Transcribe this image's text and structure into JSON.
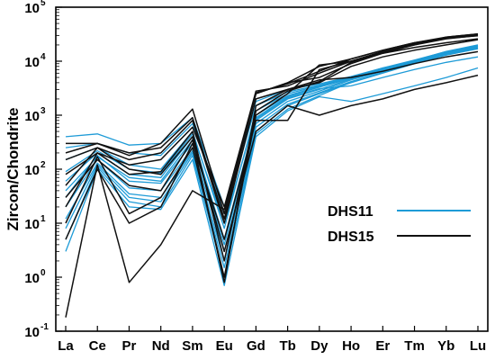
{
  "chart_data": {
    "type": "line",
    "ylabel": "Zircon/Chondrite",
    "y_scale": "log",
    "ylim": [
      0.1,
      100000
    ],
    "y_ticks": [
      {
        "base": "10",
        "exp": "-1",
        "value": 0.1
      },
      {
        "base": "10",
        "exp": "0",
        "value": 1
      },
      {
        "base": "10",
        "exp": "1",
        "value": 10
      },
      {
        "base": "10",
        "exp": "2",
        "value": 100
      },
      {
        "base": "10",
        "exp": "3",
        "value": 1000
      },
      {
        "base": "10",
        "exp": "4",
        "value": 10000
      },
      {
        "base": "10",
        "exp": "5",
        "value": 100000
      }
    ],
    "categories": [
      "La",
      "Ce",
      "Pr",
      "Nd",
      "Sm",
      "Eu",
      "Gd",
      "Tb",
      "Dy",
      "Ho",
      "Er",
      "Tm",
      "Yb",
      "Lu"
    ],
    "grid": false,
    "legend_position": "right-middle",
    "series": [
      {
        "name": "DHS11",
        "color": "#1e9bd7",
        "samples": [
          [
            400,
            450,
            280,
            300,
            900,
            20,
            1800,
            3000,
            3800,
            5200,
            7500,
            10000,
            14000,
            18000
          ],
          [
            150,
            250,
            120,
            100,
            500,
            8,
            1200,
            2500,
            3500,
            5000,
            7500,
            10500,
            15000,
            19000
          ],
          [
            60,
            200,
            80,
            70,
            400,
            5,
            900,
            2200,
            3300,
            4800,
            7000,
            10000,
            14500,
            19000
          ],
          [
            20,
            150,
            45,
            40,
            250,
            3,
            700,
            1800,
            2800,
            4500,
            6500,
            9500,
            13500,
            18000
          ],
          [
            8,
            120,
            30,
            25,
            200,
            1.5,
            500,
            1500,
            2500,
            4000,
            6000,
            9000,
            13000,
            17000
          ],
          [
            3,
            100,
            20,
            18,
            150,
            0.7,
            400,
            1200,
            2200,
            1800,
            2500,
            3500,
            5000,
            7500
          ],
          [
            30,
            180,
            60,
            55,
            300,
            4,
            800,
            2000,
            3000,
            4700,
            6800,
            9800,
            14000,
            18500
          ],
          [
            12,
            130,
            35,
            30,
            220,
            2,
            600,
            1600,
            2600,
            4200,
            6200,
            9200,
            13200,
            17500
          ],
          [
            90,
            220,
            100,
            85,
            450,
            10,
            1000,
            2300,
            3400,
            4900,
            7200,
            10200,
            14800,
            19500
          ],
          [
            250,
            300,
            200,
            180,
            700,
            15,
            1500,
            2700,
            3600,
            5100,
            7400,
            10300,
            15200,
            20000
          ],
          [
            40,
            170,
            70,
            60,
            350,
            5,
            850,
            2100,
            3100,
            3500,
            5000,
            7000,
            9500,
            12000
          ],
          [
            5,
            110,
            25,
            20,
            180,
            1,
            450,
            1300,
            2300,
            4100,
            6100,
            9100,
            13100,
            17200
          ]
        ]
      },
      {
        "name": "DHS15",
        "color": "#111111",
        "samples": [
          [
            0.18,
            120,
            0.8,
            4,
            40,
            18,
            2500,
            4000,
            8000,
            11000,
            16000,
            22000,
            28000,
            32000
          ],
          [
            5,
            100,
            10,
            20,
            300,
            5,
            800,
            800,
            7000,
            10000,
            15000,
            20000,
            26000,
            30000
          ],
          [
            50,
            250,
            150,
            200,
            800,
            10,
            2000,
            3000,
            4000,
            8000,
            12000,
            16000,
            20000,
            25000
          ],
          [
            300,
            300,
            180,
            300,
            1300,
            15,
            2500,
            4000,
            5000,
            9000,
            14000,
            20000,
            28000,
            32000
          ],
          [
            80,
            200,
            120,
            150,
            600,
            20,
            2800,
            3500,
            6000,
            10000,
            15000,
            21000,
            27000,
            31000
          ],
          [
            10,
            170,
            15,
            30,
            250,
            1,
            1000,
            2500,
            8500,
            10000,
            14000,
            18000,
            22000,
            26000
          ],
          [
            150,
            250,
            100,
            80,
            400,
            3,
            500,
            1500,
            1000,
            1500,
            2000,
            3000,
            4000,
            5500
          ],
          [
            30,
            150,
            50,
            40,
            350,
            0.8,
            1500,
            3000,
            4500,
            5000,
            6500,
            9000,
            12000,
            15000
          ],
          [
            200,
            300,
            200,
            250,
            900,
            12,
            2600,
            3800,
            6500,
            11000,
            16000,
            22000,
            27000,
            30000
          ],
          [
            20,
            200,
            80,
            90,
            500,
            2,
            1200,
            2800,
            4200,
            9500,
            14500,
            20500,
            26500,
            29500
          ]
        ]
      }
    ]
  }
}
